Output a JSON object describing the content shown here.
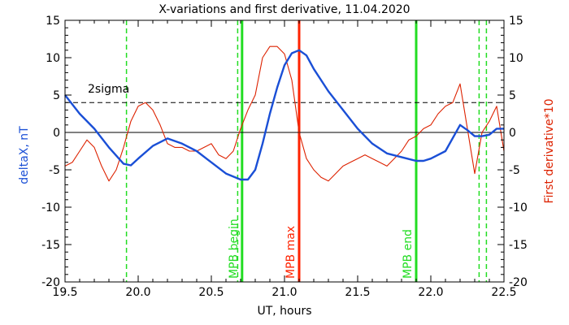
{
  "chart_data": {
    "type": "line",
    "title": "X-variations and first derivative, 11.04.2020",
    "xlabel": "UT, hours",
    "ylabel_left": "deltaX, nT",
    "ylabel_right": "First derivative*10",
    "xlim": [
      19.5,
      22.5
    ],
    "ylim": [
      -20,
      15
    ],
    "xticks": [
      19.5,
      20.0,
      20.5,
      21.0,
      21.5,
      22.0,
      22.5
    ],
    "xtick_labels": [
      "19.5",
      "20.0",
      "20.5",
      "21.0",
      "21.5",
      "22.0",
      "22.5"
    ],
    "yticks": [
      -20,
      -15,
      -10,
      -5,
      0,
      5,
      10,
      15
    ],
    "ytick_labels": [
      "-20",
      "-15",
      "-10",
      "-5",
      "0",
      "5",
      "10",
      "15"
    ],
    "grid": false,
    "reference_lines": {
      "zero": 0,
      "sigma_level": 4,
      "sigma_label": "2sigma"
    },
    "vertical_markers": [
      {
        "x": 21.1,
        "label": "MPB max",
        "color": "#ff2200",
        "style": "solid"
      },
      {
        "x": 20.71,
        "label": "MPB begin",
        "color": "#22dd22",
        "style": "solid"
      },
      {
        "x": 21.9,
        "label": "MPB end",
        "color": "#22dd22",
        "style": "solid"
      },
      {
        "x": 19.92,
        "label": "",
        "color": "#22dd22",
        "style": "dashed"
      },
      {
        "x": 20.68,
        "label": "",
        "color": "#22dd22",
        "style": "dashed"
      },
      {
        "x": 22.33,
        "label": "",
        "color": "#22dd22",
        "style": "dashed"
      },
      {
        "x": 22.38,
        "label": "",
        "color": "#22dd22",
        "style": "dashed"
      }
    ],
    "series": [
      {
        "name": "deltaX, nT",
        "color": "#1a4fd6",
        "x": [
          19.5,
          19.6,
          19.7,
          19.8,
          19.9,
          19.95,
          20.0,
          20.1,
          20.2,
          20.3,
          20.4,
          20.5,
          20.6,
          20.7,
          20.75,
          20.8,
          20.85,
          20.9,
          20.95,
          21.0,
          21.05,
          21.1,
          21.15,
          21.2,
          21.3,
          21.4,
          21.5,
          21.6,
          21.7,
          21.8,
          21.9,
          21.95,
          22.0,
          22.1,
          22.2,
          22.25,
          22.3,
          22.35,
          22.4,
          22.45,
          22.5
        ],
        "values": [
          5.0,
          2.5,
          0.5,
          -2.0,
          -4.2,
          -4.4,
          -3.5,
          -1.8,
          -0.8,
          -1.5,
          -2.5,
          -4.0,
          -5.5,
          -6.3,
          -6.3,
          -5.0,
          -1.5,
          2.5,
          6.0,
          9.0,
          10.6,
          11.0,
          10.3,
          8.5,
          5.5,
          3.0,
          0.5,
          -1.5,
          -2.8,
          -3.3,
          -3.8,
          -3.8,
          -3.5,
          -2.5,
          1.0,
          0.3,
          -0.5,
          -0.5,
          -0.3,
          0.5,
          0.5
        ]
      },
      {
        "name": "First derivative*10",
        "color": "#dd2200",
        "x": [
          19.5,
          19.55,
          19.6,
          19.65,
          19.7,
          19.75,
          19.8,
          19.85,
          19.9,
          19.95,
          20.0,
          20.05,
          20.1,
          20.15,
          20.2,
          20.25,
          20.3,
          20.35,
          20.4,
          20.45,
          20.5,
          20.55,
          20.6,
          20.65,
          20.7,
          20.75,
          20.8,
          20.85,
          20.9,
          20.95,
          21.0,
          21.05,
          21.1,
          21.15,
          21.2,
          21.25,
          21.3,
          21.35,
          21.4,
          21.45,
          21.5,
          21.55,
          21.6,
          21.65,
          21.7,
          21.75,
          21.8,
          21.85,
          21.9,
          21.95,
          22.0,
          22.05,
          22.1,
          22.15,
          22.2,
          22.25,
          22.3,
          22.35,
          22.4,
          22.45,
          22.5
        ],
        "values": [
          -4.5,
          -4.0,
          -2.5,
          -1.0,
          -2.0,
          -4.5,
          -6.5,
          -5.0,
          -2.0,
          1.5,
          3.5,
          4.0,
          3.0,
          1.0,
          -1.5,
          -2.0,
          -2.0,
          -2.5,
          -2.5,
          -2.0,
          -1.5,
          -3.0,
          -3.5,
          -2.5,
          0.5,
          3.0,
          5.0,
          10.0,
          11.5,
          11.5,
          10.5,
          7.0,
          0.0,
          -3.5,
          -5.0,
          -6.0,
          -6.5,
          -5.5,
          -4.5,
          -4.0,
          -3.5,
          -3.0,
          -3.5,
          -4.0,
          -4.5,
          -3.5,
          -2.5,
          -1.0,
          -0.5,
          0.5,
          1.0,
          2.5,
          3.5,
          4.0,
          6.5,
          0.5,
          -5.5,
          0.0,
          1.5,
          3.5,
          -2.5
        ]
      }
    ]
  }
}
